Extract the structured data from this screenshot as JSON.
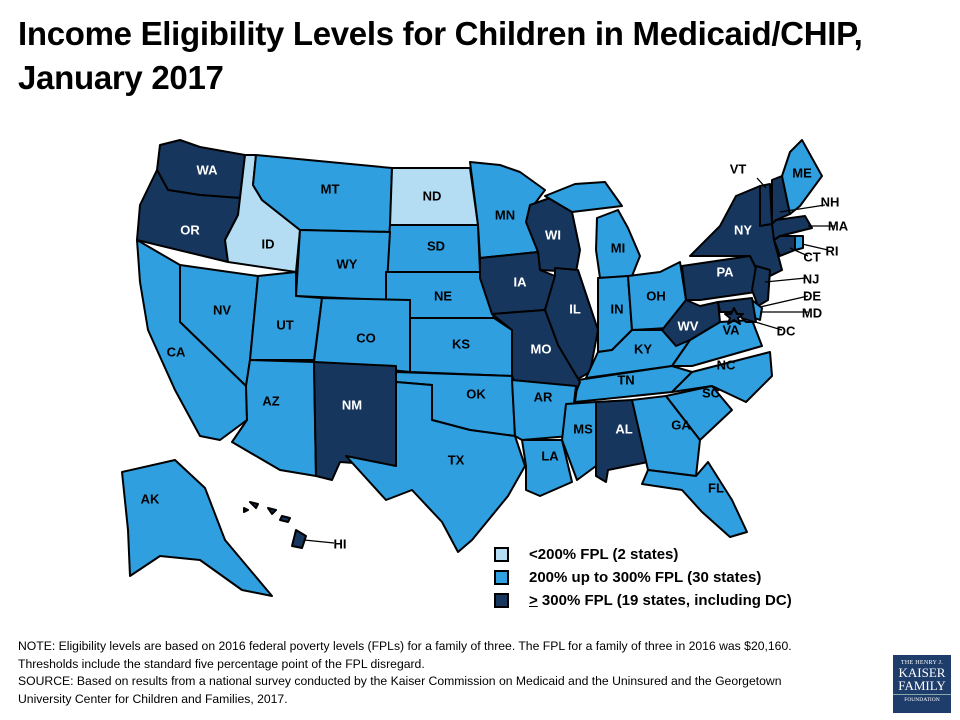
{
  "title": "Income Eligibility Levels for Children in Medicaid/CHIP, January 2017",
  "colors": {
    "low": "#b4ddf3",
    "mid": "#2f9fe0",
    "high": "#17365d"
  },
  "legend": [
    {
      "category": "low",
      "prefix": "",
      "label": "<200% FPL (2 states)"
    },
    {
      "category": "mid",
      "prefix": "",
      "label": "200% up to 300% FPL (30 states)"
    },
    {
      "category": "high",
      "prefix": ">",
      "label": " 300% FPL (19 states, including DC)"
    }
  ],
  "states": [
    {
      "abbr": "WA",
      "category": "high"
    },
    {
      "abbr": "OR",
      "category": "high"
    },
    {
      "abbr": "ID",
      "category": "low"
    },
    {
      "abbr": "MT",
      "category": "mid"
    },
    {
      "abbr": "ND",
      "category": "low"
    },
    {
      "abbr": "SD",
      "category": "mid"
    },
    {
      "abbr": "WY",
      "category": "mid"
    },
    {
      "abbr": "NE",
      "category": "mid"
    },
    {
      "abbr": "MN",
      "category": "mid"
    },
    {
      "abbr": "WI",
      "category": "high"
    },
    {
      "abbr": "IA",
      "category": "high"
    },
    {
      "abbr": "IL",
      "category": "high"
    },
    {
      "abbr": "MI",
      "category": "mid"
    },
    {
      "abbr": "IN",
      "category": "mid"
    },
    {
      "abbr": "OH",
      "category": "mid"
    },
    {
      "abbr": "KY",
      "category": "mid"
    },
    {
      "abbr": "TN",
      "category": "mid"
    },
    {
      "abbr": "NV",
      "category": "mid"
    },
    {
      "abbr": "CA",
      "category": "mid"
    },
    {
      "abbr": "UT",
      "category": "mid"
    },
    {
      "abbr": "CO",
      "category": "mid"
    },
    {
      "abbr": "AZ",
      "category": "mid"
    },
    {
      "abbr": "NM",
      "category": "high"
    },
    {
      "abbr": "KS",
      "category": "mid"
    },
    {
      "abbr": "OK",
      "category": "mid"
    },
    {
      "abbr": "TX",
      "category": "mid"
    },
    {
      "abbr": "MO",
      "category": "high"
    },
    {
      "abbr": "AR",
      "category": "mid"
    },
    {
      "abbr": "LA",
      "category": "mid"
    },
    {
      "abbr": "MS",
      "category": "mid"
    },
    {
      "abbr": "AL",
      "category": "high"
    },
    {
      "abbr": "GA",
      "category": "mid"
    },
    {
      "abbr": "FL",
      "category": "mid"
    },
    {
      "abbr": "SC",
      "category": "mid"
    },
    {
      "abbr": "NC",
      "category": "mid"
    },
    {
      "abbr": "VA",
      "category": "mid"
    },
    {
      "abbr": "WV",
      "category": "high"
    },
    {
      "abbr": "PA",
      "category": "high"
    },
    {
      "abbr": "NY",
      "category": "high"
    },
    {
      "abbr": "VT",
      "category": "high"
    },
    {
      "abbr": "NH",
      "category": "high"
    },
    {
      "abbr": "ME",
      "category": "mid"
    },
    {
      "abbr": "MA",
      "category": "high"
    },
    {
      "abbr": "CT",
      "category": "high"
    },
    {
      "abbr": "RI",
      "category": "mid"
    },
    {
      "abbr": "NJ",
      "category": "high"
    },
    {
      "abbr": "DE",
      "category": "mid"
    },
    {
      "abbr": "MD",
      "category": "high"
    },
    {
      "abbr": "DC",
      "category": "high"
    },
    {
      "abbr": "AK",
      "category": "mid"
    },
    {
      "abbr": "HI",
      "category": "high"
    }
  ],
  "notes": [
    "NOTE: Eligibility levels are based on 2016  federal poverty levels (FPLs) for a family of three. The FPL for a family of three in 2016  was $20,160.",
    "Thresholds include the standard five percentage point of the FPL disregard.",
    "SOURCE: Based on results from a national survey conducted by the Kaiser Commission on Medicaid and the Uninsured and the Georgetown",
    "University Center for Children and Families, 2017."
  ],
  "logo": {
    "line1": "THE HENRY J.",
    "line2": "KAISER",
    "line3": "FAMILY",
    "line4": "FOUNDATION"
  }
}
